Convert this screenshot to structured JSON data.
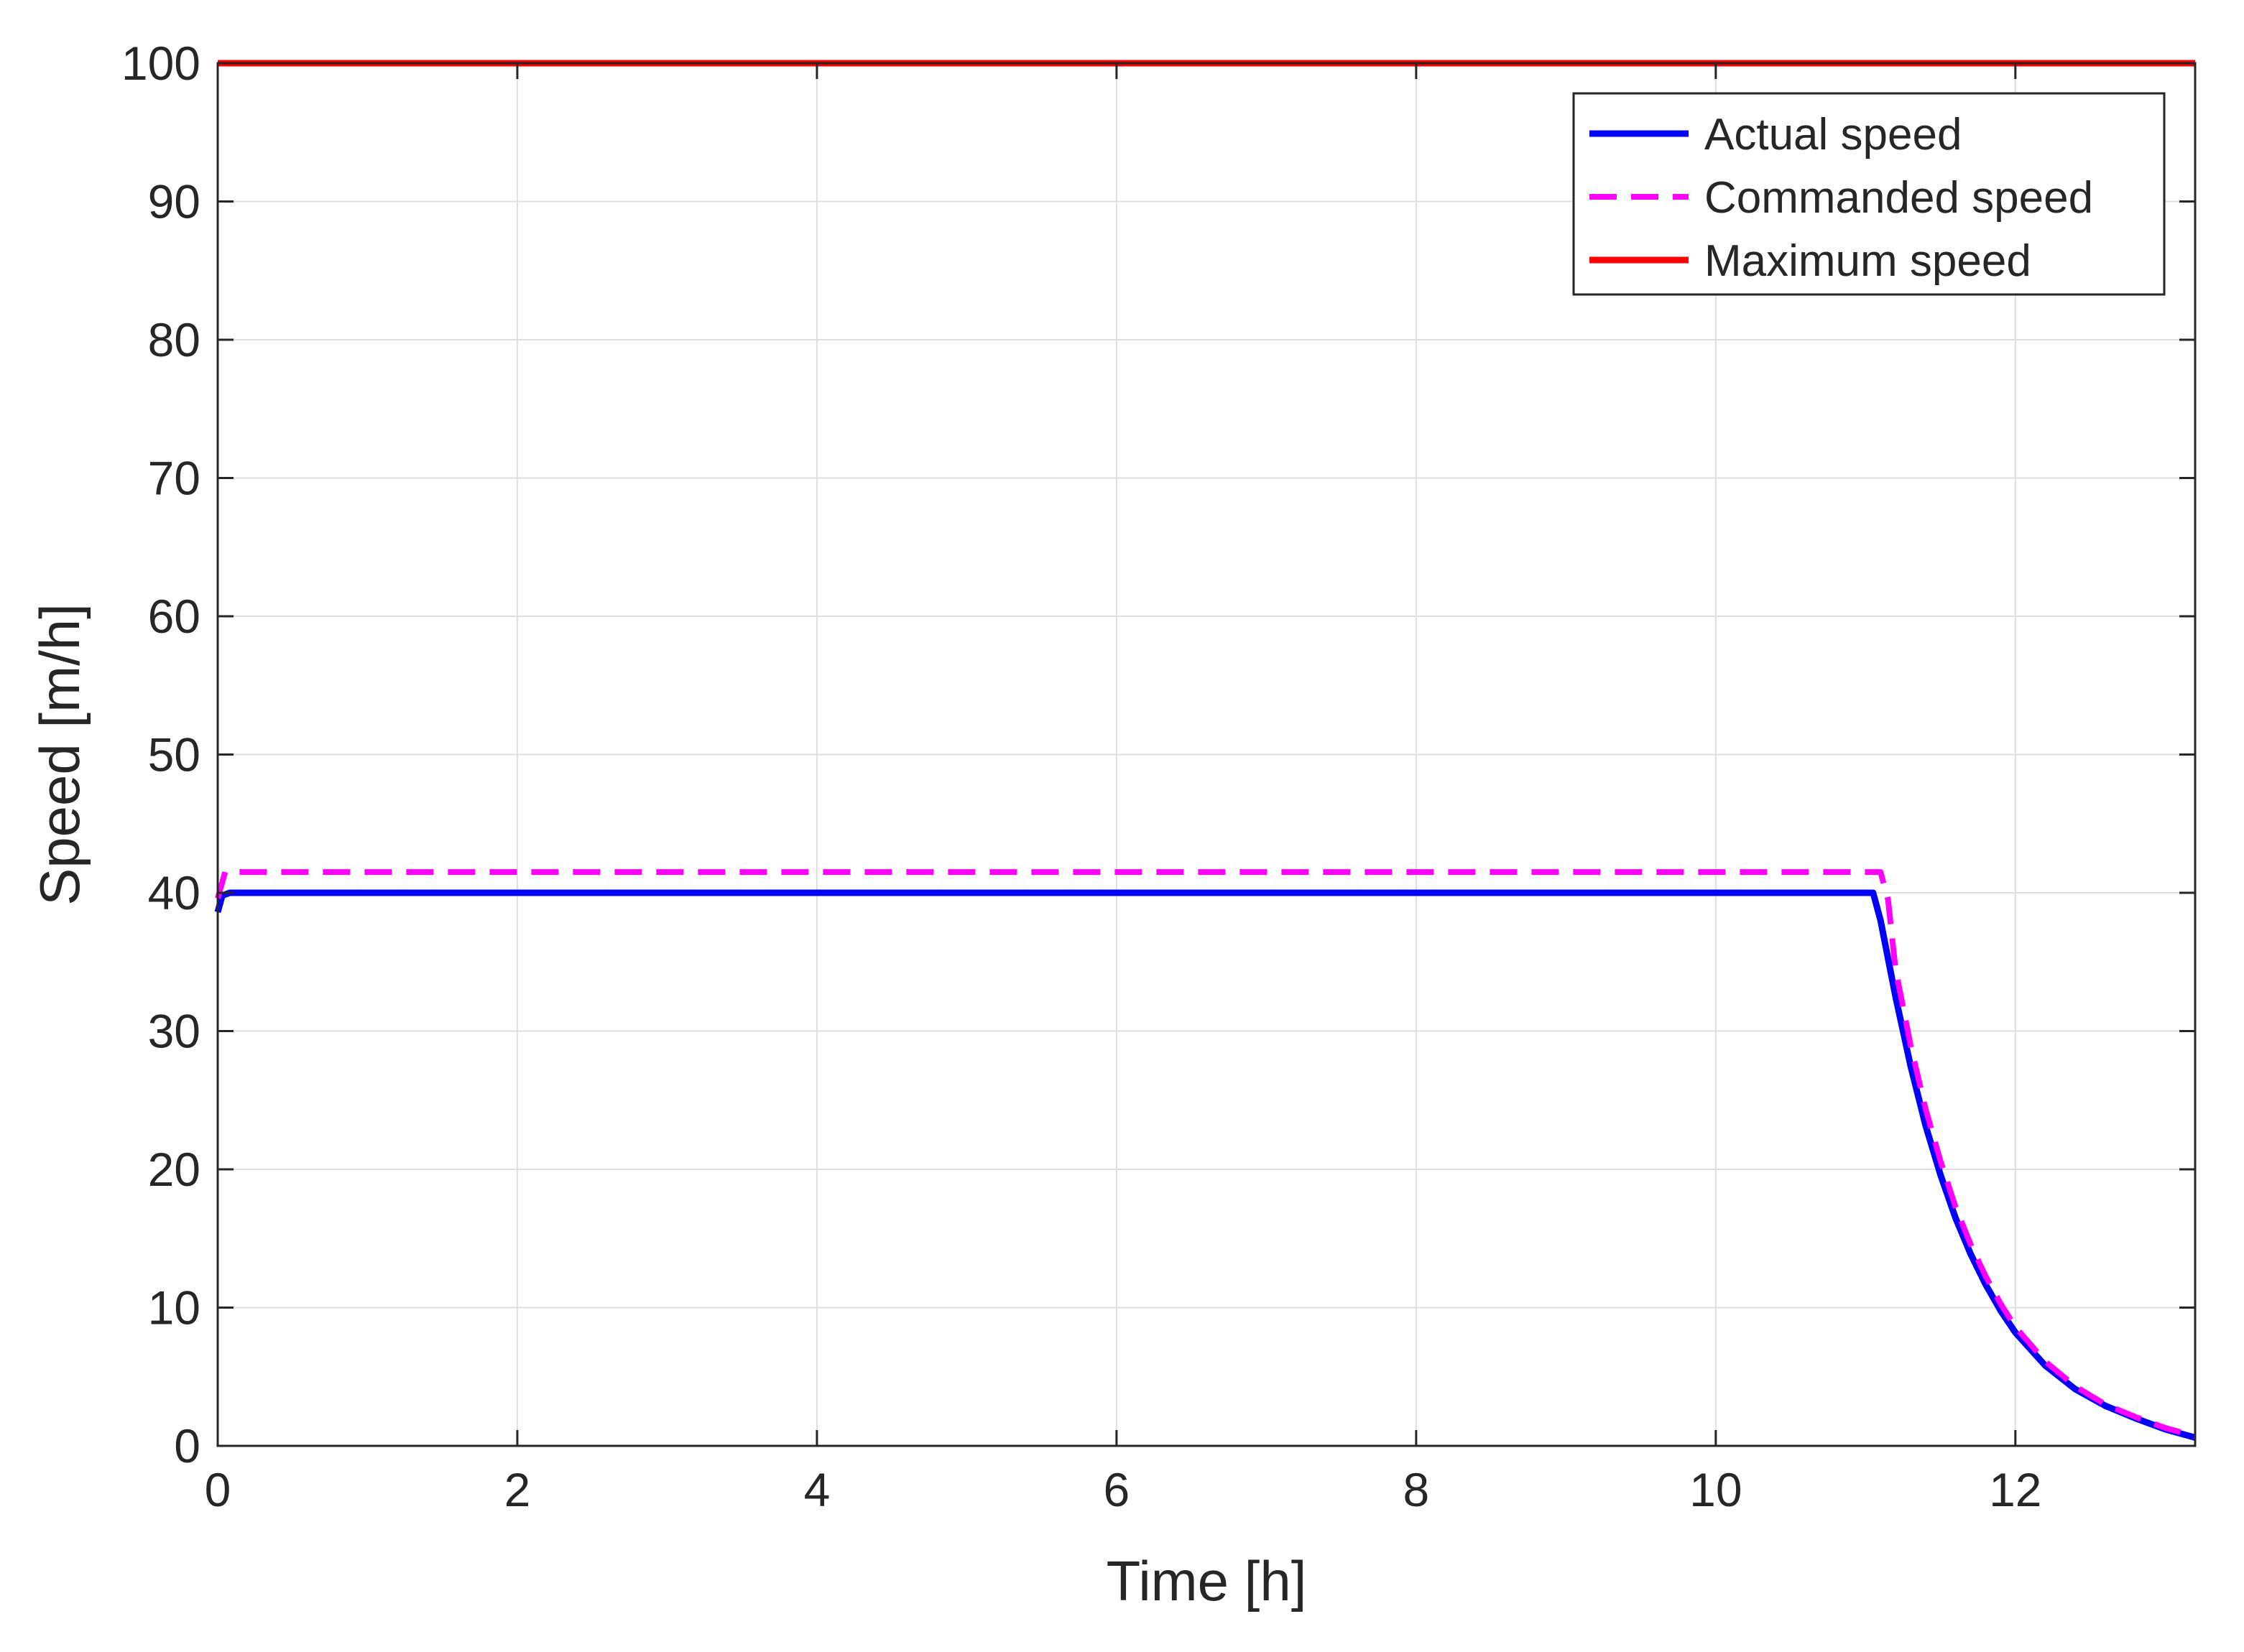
{
  "chart_data": {
    "type": "line",
    "xlabel": "Time [h]",
    "ylabel": "Speed [m/h]",
    "xlim": [
      0,
      13.2
    ],
    "ylim": [
      0,
      100
    ],
    "xticks": [
      0,
      2,
      4,
      6,
      8,
      10,
      12
    ],
    "yticks": [
      0,
      10,
      20,
      30,
      40,
      50,
      60,
      70,
      80,
      90,
      100
    ],
    "grid": true,
    "legend_position": "top-right",
    "series": [
      {
        "name": "Actual speed",
        "color": "#0000ff",
        "style": "solid",
        "x": [
          0,
          0.03,
          0.08,
          0.15,
          1,
          4,
          8,
          11.05,
          11.1,
          11.2,
          11.3,
          11.4,
          11.5,
          11.6,
          11.7,
          11.8,
          11.9,
          12.0,
          12.2,
          12.4,
          12.6,
          12.8,
          13.0,
          13.2
        ],
        "y": [
          38.6,
          39.8,
          40,
          40,
          40,
          40,
          40,
          40,
          38.0,
          32.5,
          27.5,
          23.2,
          19.6,
          16.5,
          13.9,
          11.7,
          9.8,
          8.2,
          5.8,
          4.1,
          2.9,
          2.0,
          1.2,
          0.6
        ]
      },
      {
        "name": "Commanded speed",
        "color": "#ff00ff",
        "style": "dashed",
        "x": [
          0,
          0.05,
          1,
          4,
          8,
          11.1,
          11.15,
          11.2,
          11.3,
          11.4,
          11.5,
          11.6,
          11.7,
          11.8,
          11.9,
          12.0,
          12.2,
          12.4,
          12.6,
          12.8,
          13.0,
          13.2
        ],
        "y": [
          39.6,
          41.5,
          41.5,
          41.5,
          41.5,
          41.5,
          39.5,
          34.5,
          29.0,
          24.4,
          20.6,
          17.3,
          14.6,
          12.3,
          10.3,
          8.6,
          6.1,
          4.3,
          3.0,
          2.1,
          1.3,
          0.7
        ]
      },
      {
        "name": "Maximum speed",
        "color": "#ff0000",
        "style": "solid",
        "x": [
          0,
          13.2
        ],
        "y": [
          100,
          100
        ]
      }
    ]
  }
}
